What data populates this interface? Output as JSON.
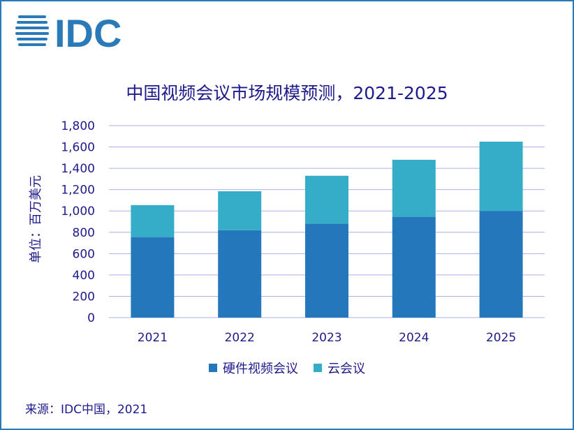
{
  "logo": {
    "text": "IDC",
    "color": "#2a7ab9"
  },
  "colors": {
    "series_hardware": "#2577bb",
    "series_cloud": "#35acc8",
    "text": "#1f1a8c",
    "grid": "#aab1e6",
    "frame": "#2a7ab9"
  },
  "chart_data": {
    "type": "bar",
    "stacked": true,
    "title": "中国视频会议市场规模预测，2021-2025",
    "ylabel": "单位：百万美元",
    "xlabel": "",
    "categories": [
      "2021",
      "2022",
      "2023",
      "2024",
      "2025"
    ],
    "series": [
      {
        "name": "硬件视频会议",
        "values": [
          755,
          820,
          880,
          945,
          1000
        ]
      },
      {
        "name": "云会议",
        "values": [
          300,
          365,
          450,
          535,
          650
        ]
      }
    ],
    "ylim": [
      0,
      1800
    ],
    "yticks": [
      "0",
      "200",
      "400",
      "600",
      "800",
      "1,000",
      "1,200",
      "1,400",
      "1,600",
      "1,800"
    ],
    "ytick_values": [
      0,
      200,
      400,
      600,
      800,
      1000,
      1200,
      1400,
      1600,
      1800
    ],
    "grid": true,
    "legend_position": "bottom"
  },
  "legend": {
    "hardware": "硬件视频会议",
    "cloud": "云会议"
  },
  "source": "来源：IDC中国，2021"
}
